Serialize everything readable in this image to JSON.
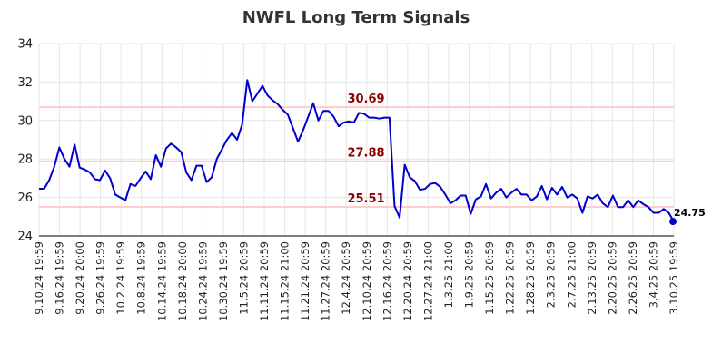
{
  "chart_data": {
    "type": "line",
    "title": "NWFL Long Term Signals",
    "xlabel": "",
    "ylabel": "",
    "ylim": [
      24,
      34
    ],
    "yticks": [
      24,
      26,
      28,
      30,
      32,
      34
    ],
    "grid": true,
    "x_tick_labels": [
      "9.10.24 19:59",
      "9.16.24 19:59",
      "9.20.24 20:00",
      "9.26.24 19:59",
      "10.2.24 19:59",
      "10.8.24 19:59",
      "10.14.24 19:59",
      "10.18.24 20:00",
      "10.24.24 19:59",
      "10.30.24 19:59",
      "11.5.24 20:59",
      "11.11.24 20:59",
      "11.15.24 21:00",
      "11.21.24 20:59",
      "11.27.24 20:59",
      "12.4.24 20:59",
      "12.10.24 20:59",
      "12.16.24 20:59",
      "12.20.24 20:59",
      "12.27.24 21:00",
      "1.3.25 21:00",
      "1.9.25 20:59",
      "1.15.25 20:59",
      "1.22.25 20:59",
      "1.28.25 20:59",
      "2.3.25 20:59",
      "2.7.25 21:00",
      "2.13.25 20:59",
      "2.20.25 20:59",
      "2.26.25 20:59",
      "3.4.25 20:59",
      "3.10.25 19:59"
    ],
    "horizontal_lines": [
      {
        "value": 30.69,
        "label": "30.69",
        "color": "#ffcccc",
        "label_color": "#8b0000"
      },
      {
        "value": 27.88,
        "label": "27.88",
        "color": "#ffcccc",
        "label_color": "#8b0000"
      },
      {
        "value": 25.51,
        "label": "25.51",
        "color": "#ffcccc",
        "label_color": "#8b0000"
      }
    ],
    "series": [
      {
        "color": "#0000cc",
        "values": [
          26.45,
          26.45,
          26.9,
          27.6,
          28.6,
          28.0,
          27.6,
          28.75,
          27.55,
          27.45,
          27.3,
          26.95,
          26.9,
          27.4,
          27.0,
          26.15,
          26.0,
          25.85,
          26.7,
          26.6,
          27.0,
          27.35,
          26.95,
          28.2,
          27.6,
          28.55,
          28.8,
          28.6,
          28.35,
          27.3,
          26.9,
          27.65,
          27.65,
          26.8,
          27.05,
          28.0,
          28.5,
          29.0,
          29.35,
          29.0,
          29.8,
          32.1,
          31.0,
          31.4,
          31.8,
          31.3,
          31.05,
          30.85,
          30.55,
          30.3,
          29.6,
          28.9,
          29.5,
          30.2,
          30.9,
          30.0,
          30.5,
          30.5,
          30.2,
          29.7,
          29.9,
          29.95,
          29.9,
          30.4,
          30.35,
          30.15,
          30.15,
          30.1,
          30.15,
          30.15,
          25.55,
          24.95,
          27.7,
          27.05,
          26.85,
          26.4,
          26.45,
          26.7,
          26.75,
          26.55,
          26.15,
          25.7,
          25.85,
          26.1,
          26.1,
          25.15,
          25.9,
          26.05,
          26.7,
          25.95,
          26.25,
          26.45,
          26.0,
          26.25,
          26.45,
          26.15,
          26.15,
          25.85,
          26.05,
          26.6,
          25.9,
          26.5,
          26.15,
          26.55,
          26.0,
          26.15,
          25.95,
          25.2,
          26.05,
          25.95,
          26.15,
          25.7,
          25.5,
          26.1,
          25.5,
          25.5,
          25.85,
          25.5,
          25.85,
          25.65,
          25.5,
          25.2,
          25.2,
          25.4,
          25.2,
          24.75
        ]
      }
    ],
    "last_point": {
      "value": 24.75,
      "label": "24.75"
    }
  }
}
